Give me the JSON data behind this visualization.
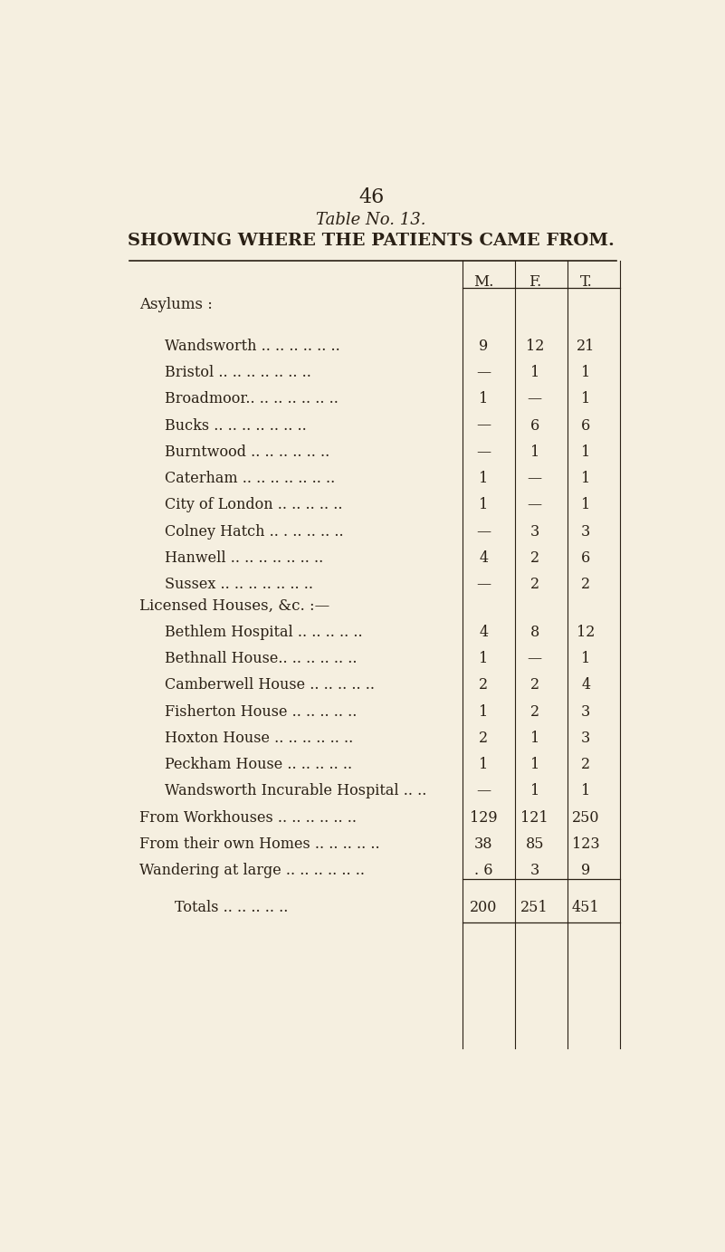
{
  "page_number": "46",
  "title_line1": "Table No. 13.",
  "title_line2": "SHOWING WHERE THE PATIENTS CAME FROM.",
  "col_headers": [
    "M.",
    "F.",
    "T."
  ],
  "section1_header": "Asylums :",
  "section1_rows": [
    [
      "Wandsworth .. .. .. .. .. ..",
      "9",
      "12",
      "21"
    ],
    [
      "Bristol .. .. .. .. .. .. ..",
      "—",
      "1",
      "1"
    ],
    [
      "Broadmoor.. .. .. .. .. .. ..",
      "1",
      "—",
      "1"
    ],
    [
      "Bucks .. .. .. .. .. .. ..",
      "—",
      "6",
      "6"
    ],
    [
      "Burntwood .. .. .. .. .. ..",
      "—",
      "1",
      "1"
    ],
    [
      "Caterham .. .. .. .. .. .. ..",
      "1",
      "—",
      "1"
    ],
    [
      "City of London .. .. .. .. ..",
      "1",
      "—",
      "1"
    ],
    [
      "Colney Hatch .. . .. .. .. ..",
      "—",
      "3",
      "3"
    ],
    [
      "Hanwell .. .. .. .. .. .. ..",
      "4",
      "2",
      "6"
    ],
    [
      "Sussex .. .. .. .. .. .. ..",
      "—",
      "2",
      "2"
    ]
  ],
  "section2_header": "Licensed Houses, &c. :—",
  "section2_rows": [
    [
      "Bethlem Hospital .. .. .. .. ..",
      "4",
      "8",
      "12"
    ],
    [
      "Bethnall House.. .. .. .. .. ..",
      "1",
      "—",
      "1"
    ],
    [
      "Camberwell House .. .. .. .. ..",
      "2",
      "2",
      "4"
    ],
    [
      "Fisherton House .. .. .. .. ..",
      "1",
      "2",
      "3"
    ],
    [
      "Hoxton House .. .. .. .. .. ..",
      "2",
      "1",
      "3"
    ],
    [
      "Peckham House .. .. .. .. ..",
      "1",
      "1",
      "2"
    ],
    [
      "Wandsworth Incurable Hospital .. ..",
      "—",
      "1",
      "1"
    ]
  ],
  "section3_rows": [
    [
      "From Workhouses .. .. .. .. .. ..",
      "129",
      "121",
      "250"
    ],
    [
      "From their own Homes .. .. .. .. ..",
      "38",
      "85",
      "123"
    ],
    [
      "Wandering at large .. .. .. .. .. ..",
      ". 6",
      "3",
      "9"
    ]
  ],
  "totals_row": [
    "Totals .. .. .. .. ..",
    "200",
    "251",
    "451"
  ],
  "bg_color": "#f5efe0",
  "text_color": "#2a2015",
  "line_color": "#2a2015"
}
